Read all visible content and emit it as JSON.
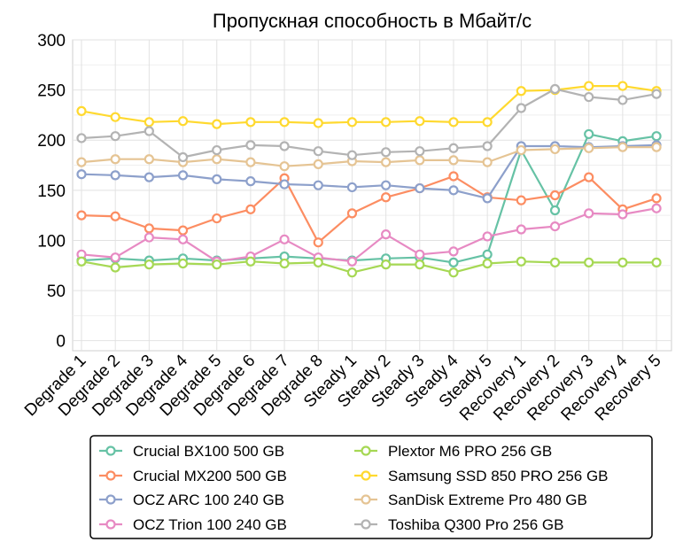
{
  "chart_data": {
    "type": "line",
    "title": "Пропускная способность в Мбайт/с",
    "xlabel": "",
    "ylabel": "",
    "ylim": [
      -10,
      300
    ],
    "yticks": [
      0,
      50,
      100,
      150,
      200,
      250,
      300
    ],
    "grid": true,
    "legend_position": "bottom",
    "categories": [
      "Degrade 1",
      "Degrade 2",
      "Degrade 3",
      "Degrade 4",
      "Degrade 5",
      "Degrade 6",
      "Degrade 7",
      "Degrade 8",
      "Steady 1",
      "Steady 2",
      "Steady 3",
      "Steady 4",
      "Steady 5",
      "Recovery 1",
      "Recovery 2",
      "Recovery 3",
      "Recovery 4",
      "Recovery 5"
    ],
    "series": [
      {
        "name": "Crucial BX100 500 GB",
        "color": "#66c2a5",
        "values": [
          80,
          82,
          80,
          82,
          80,
          82,
          84,
          82,
          80,
          82,
          83,
          78,
          86,
          190,
          130,
          206,
          199,
          204
        ]
      },
      {
        "name": "Crucial MX200 500 GB",
        "color": "#fc8d62",
        "values": [
          125,
          124,
          112,
          110,
          122,
          131,
          162,
          98,
          127,
          143,
          152,
          164,
          143,
          140,
          145,
          163,
          131,
          142
        ]
      },
      {
        "name": "OCZ ARC 100 240 GB",
        "color": "#8da0cb",
        "values": [
          166,
          165,
          163,
          165,
          161,
          159,
          156,
          155,
          153,
          155,
          152,
          150,
          142,
          194,
          194,
          193,
          194,
          195
        ]
      },
      {
        "name": "OCZ Trion 100 240 GB",
        "color": "#e78ac3",
        "values": [
          86,
          83,
          103,
          101,
          79,
          84,
          101,
          83,
          79,
          106,
          86,
          89,
          104,
          111,
          114,
          127,
          126,
          132
        ]
      },
      {
        "name": "Plextor M6 PRO 256 GB",
        "color": "#a6d854",
        "values": [
          79,
          73,
          76,
          77,
          76,
          79,
          77,
          78,
          68,
          76,
          76,
          68,
          77,
          79,
          78,
          78,
          78,
          78
        ]
      },
      {
        "name": "Samsung SSD 850 PRO 256 GB",
        "color": "#ffd92f",
        "values": [
          229,
          223,
          218,
          219,
          216,
          218,
          218,
          217,
          218,
          218,
          219,
          218,
          218,
          249,
          250,
          254,
          254,
          249
        ]
      },
      {
        "name": "SanDisk Extreme Pro 480 GB",
        "color": "#e5c494",
        "values": [
          178,
          181,
          181,
          178,
          181,
          178,
          174,
          176,
          179,
          178,
          180,
          180,
          178,
          190,
          191,
          192,
          193,
          193
        ]
      },
      {
        "name": "Toshiba Q300 Pro 256 GB",
        "color": "#b3b3b3",
        "values": [
          202,
          204,
          209,
          183,
          190,
          195,
          194,
          189,
          185,
          188,
          189,
          192,
          194,
          232,
          251,
          243,
          240,
          246
        ]
      }
    ]
  }
}
